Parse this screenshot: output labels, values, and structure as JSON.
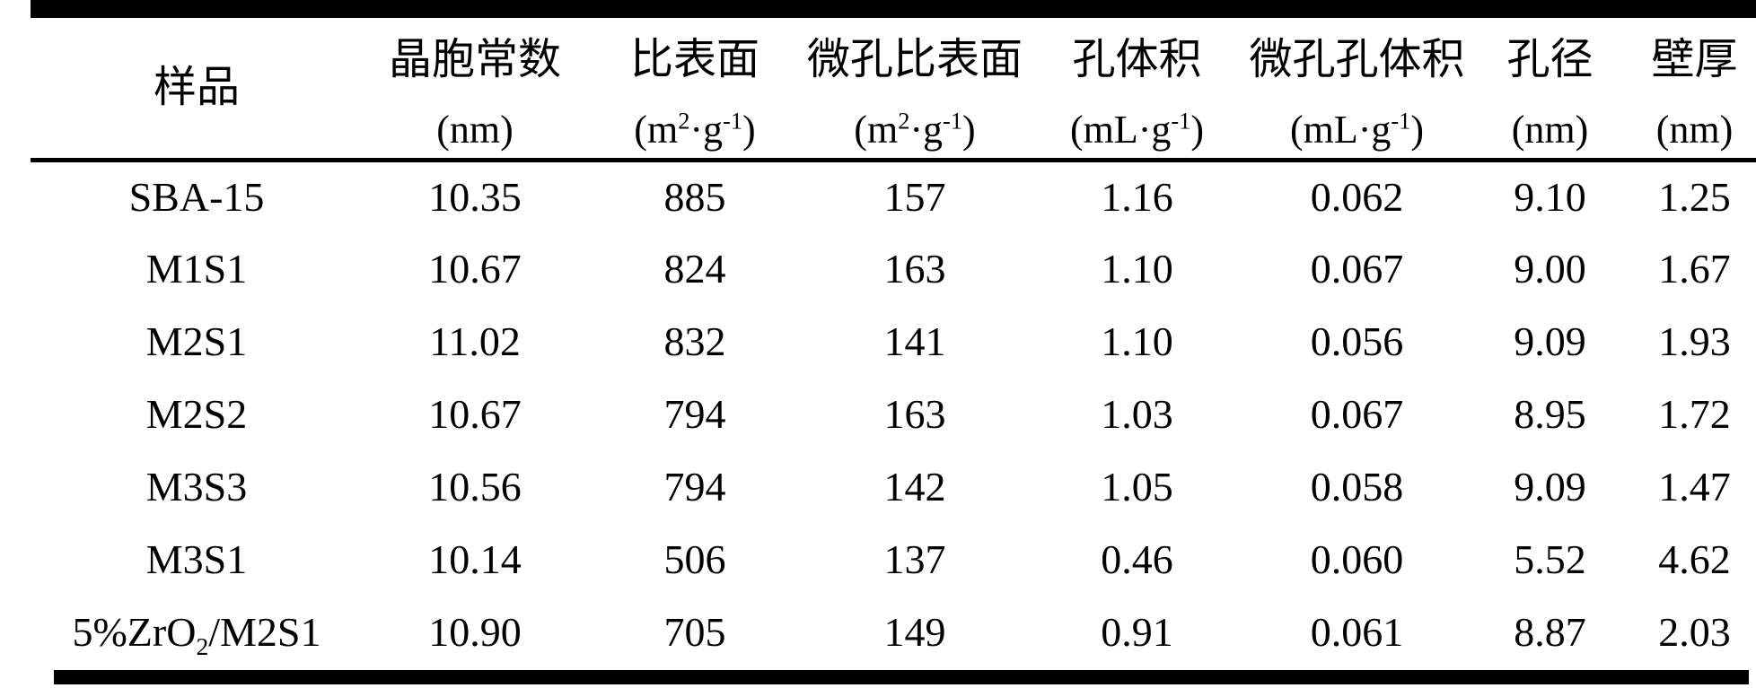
{
  "table": {
    "columns": [
      {
        "name": "样品",
        "unit": ""
      },
      {
        "name": "晶胞常数",
        "unit": "(nm)"
      },
      {
        "name": "比表面",
        "unit": "(m^2^·g^-1^)"
      },
      {
        "name": "微孔比表面",
        "unit": "(m^2^·g^-1^)"
      },
      {
        "name": "孔体积",
        "unit": "(mL·g^-1^)"
      },
      {
        "name": "微孔孔体积",
        "unit": "(mL·g^-1^)"
      },
      {
        "name": "孔径",
        "unit": "(nm)"
      },
      {
        "name": "壁厚",
        "unit": "(nm)"
      }
    ],
    "rows": [
      {
        "sample": "SBA-15",
        "values": [
          "10.35",
          "885",
          "157",
          "1.16",
          "0.062",
          "9.10",
          "1.25"
        ]
      },
      {
        "sample": "M1S1",
        "values": [
          "10.67",
          "824",
          "163",
          "1.10",
          "0.067",
          "9.00",
          "1.67"
        ]
      },
      {
        "sample": "M2S1",
        "values": [
          "11.02",
          "832",
          "141",
          "1.10",
          "0.056",
          "9.09",
          "1.93"
        ]
      },
      {
        "sample": "M2S2",
        "values": [
          "10.67",
          "794",
          "163",
          "1.03",
          "0.067",
          "8.95",
          "1.72"
        ]
      },
      {
        "sample": "M3S3",
        "values": [
          "10.56",
          "794",
          "142",
          "1.05",
          "0.058",
          "9.09",
          "1.47"
        ]
      },
      {
        "sample": "M3S1",
        "values": [
          "10.14",
          "506",
          "137",
          "0.46",
          "0.060",
          "5.52",
          "4.62"
        ]
      },
      {
        "sample": "5%ZrO~2~/M2S1",
        "values": [
          "10.90",
          "705",
          "149",
          "0.91",
          "0.061",
          "8.87",
          "2.03"
        ]
      }
    ]
  }
}
